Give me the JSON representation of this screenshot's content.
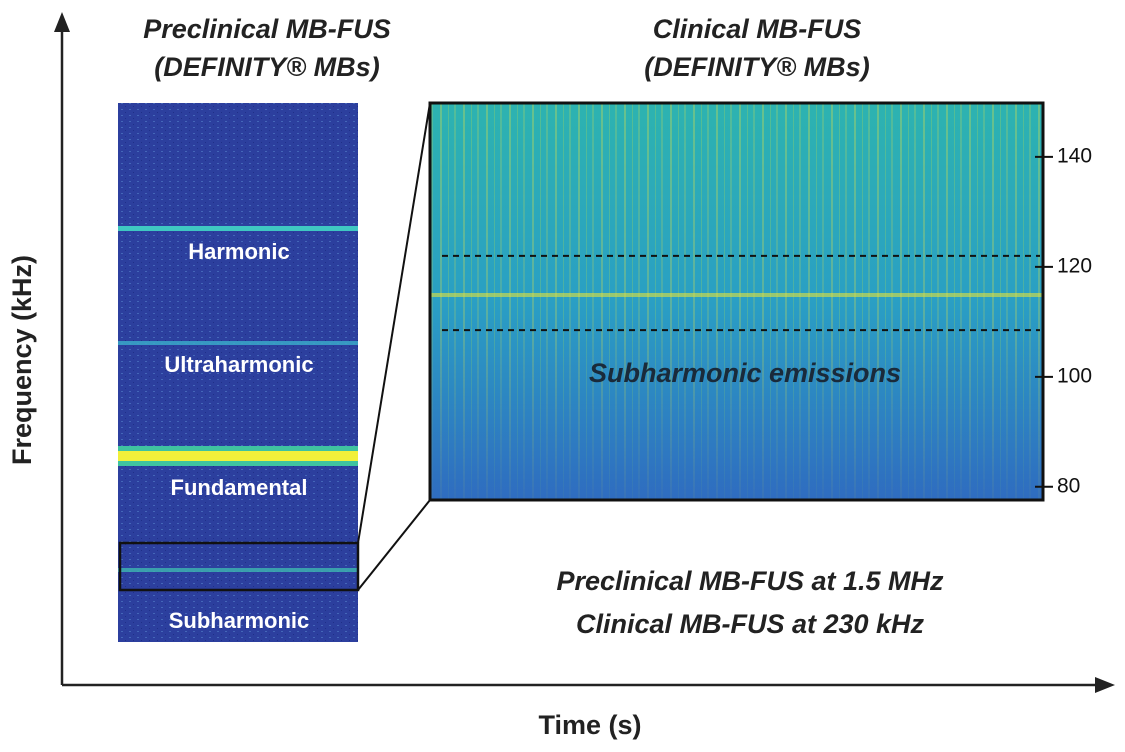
{
  "figure": {
    "axes": {
      "x_label": "Time (s)",
      "y_label": "Frequency (kHz)"
    },
    "preclinical": {
      "title": [
        "Preclinical MB-FUS",
        "(DEFINITY® MBs)"
      ],
      "bands": [
        "Harmonic",
        "Ultraharmonic",
        "Fundamental",
        "Subharmonic"
      ]
    },
    "clinical": {
      "title": [
        "Clinical MB-FUS",
        "(DEFINITY® MBs)"
      ],
      "ylim": [
        77.6,
        149.8
      ],
      "yticks": [
        80,
        100,
        120,
        140
      ],
      "dashed_lines": [
        122,
        108.5
      ],
      "annotation": "Subharmonic emissions"
    },
    "notes": [
      "Preclinical MB-FUS at 1.5 MHz",
      "Clinical MB-FUS at 230 kHz"
    ]
  }
}
